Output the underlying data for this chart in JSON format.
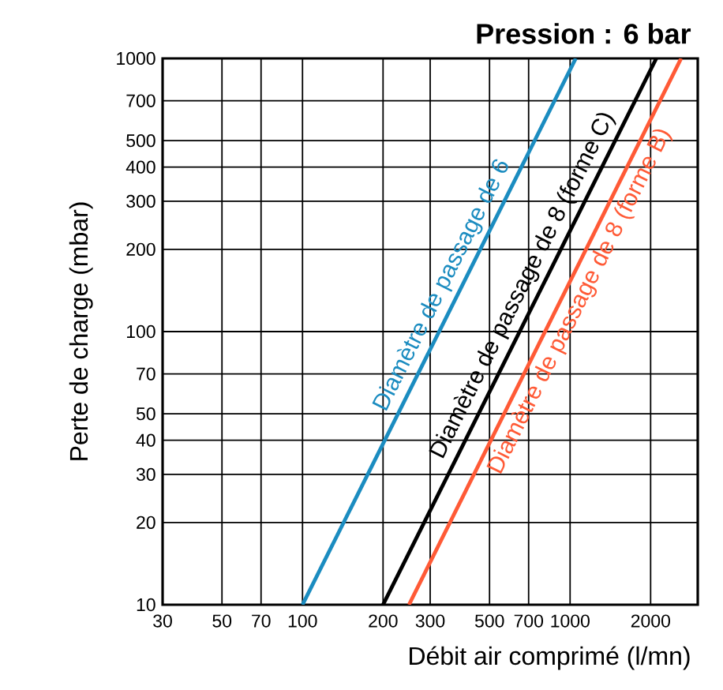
{
  "chart_data": {
    "type": "line",
    "title": "Pression : 6 bar",
    "xlabel": "Débit air comprimé (l/mn)",
    "ylabel": "Perte de charge (mbar)",
    "log": "xy",
    "grid": true,
    "marker": "none",
    "line_style": "solid",
    "xlim": [
      30,
      3000
    ],
    "ylim": [
      10,
      1000
    ],
    "xticks": [
      30,
      50,
      70,
      100,
      200,
      300,
      500,
      700,
      1000,
      2000
    ],
    "yticks": [
      10,
      20,
      30,
      40,
      50,
      70,
      100,
      200,
      300,
      400,
      500,
      700,
      1000
    ],
    "series": [
      {
        "name": "Diamètre de passage de 6",
        "color": "#1b8cc0",
        "x": [
          100,
          1050
        ],
        "values": [
          10,
          1000
        ]
      },
      {
        "name": "Diamètre de passage de 8 (forme C)",
        "color": "#000000",
        "x": [
          200,
          2100
        ],
        "values": [
          10,
          1000
        ]
      },
      {
        "name": "Diamètre de passage de 8 (forme B)",
        "color": "#ff5a36",
        "x": [
          250,
          2600
        ],
        "values": [
          10,
          1000
        ]
      }
    ]
  }
}
